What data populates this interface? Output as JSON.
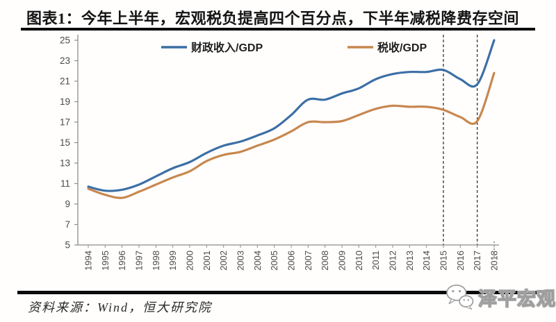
{
  "header": {
    "title": "图表1：今年上半年，宏观税负提高四个百分点，下半年减税降费存空间"
  },
  "chart_data": {
    "type": "line",
    "title": "图表1：今年上半年，宏观税负提高四个百分点，下半年减税降费存空间",
    "x": [
      1994,
      1995,
      1996,
      1997,
      1998,
      1999,
      2000,
      2001,
      2002,
      2003,
      2004,
      2005,
      2006,
      2007,
      2008,
      2009,
      2010,
      2011,
      2012,
      2013,
      2014,
      2015,
      2016,
      2017,
      2018
    ],
    "series": [
      {
        "name": "财政收入/GDP",
        "color": "#3C6FA5",
        "values": [
          10.7,
          10.3,
          10.4,
          10.9,
          11.7,
          12.5,
          13.1,
          14.0,
          14.7,
          15.1,
          15.7,
          16.4,
          17.7,
          19.2,
          19.2,
          19.8,
          20.3,
          21.2,
          21.7,
          21.9,
          21.9,
          22.1,
          21.2,
          20.7,
          25.0
        ]
      },
      {
        "name": "税收/GDP",
        "color": "#C8874F",
        "values": [
          10.5,
          9.9,
          9.6,
          10.2,
          10.9,
          11.6,
          12.2,
          13.2,
          13.8,
          14.1,
          14.7,
          15.3,
          16.1,
          17.0,
          17.0,
          17.1,
          17.7,
          18.3,
          18.6,
          18.5,
          18.5,
          18.2,
          17.5,
          17.1,
          21.8
        ]
      }
    ],
    "ylim": [
      5,
      25
    ],
    "ytick_step": 2,
    "xlabel": "",
    "ylabel": "",
    "grid": false,
    "legend_position": "top",
    "annotations": {
      "dashed_vlines_x": [
        2015,
        2017
      ],
      "dotted_tick_x": 2018
    },
    "axis_color": "#8C8C8C",
    "tick_label_color": "#4A4A4A",
    "legend_text_color": "#1F1F1F",
    "dashed_line_color": "#3F3F3F"
  },
  "footer": {
    "source": "资料来源：Wind，恒大研究院",
    "logo": {
      "text": "泽平宏观",
      "icon": "wechat-icon"
    }
  }
}
